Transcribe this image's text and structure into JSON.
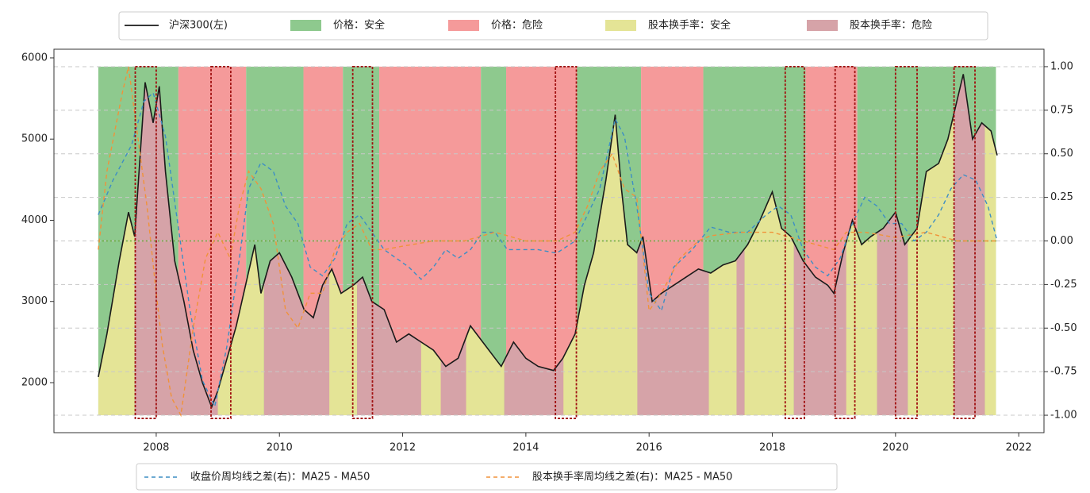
{
  "chart_data": {
    "type": "line",
    "series": [
      {
        "name": "沪深300(左)",
        "color": "#1a1a1a",
        "style": "solid",
        "x": [
          2007.06,
          2007.2,
          2007.4,
          2007.55,
          2007.65,
          2007.82,
          2007.95,
          2008.05,
          2008.15,
          2008.3,
          2008.45,
          2008.6,
          2008.75,
          2008.9,
          2009.0,
          2009.15,
          2009.3,
          2009.45,
          2009.6,
          2009.7,
          2009.85,
          2010.0,
          2010.2,
          2010.4,
          2010.55,
          2010.7,
          2010.85,
          2011.0,
          2011.2,
          2011.35,
          2011.5,
          2011.7,
          2011.9,
          2012.1,
          2012.3,
          2012.5,
          2012.7,
          2012.9,
          2013.1,
          2013.3,
          2013.5,
          2013.6,
          2013.8,
          2014.0,
          2014.2,
          2014.45,
          2014.6,
          2014.8,
          2014.95,
          2015.1,
          2015.3,
          2015.45,
          2015.55,
          2015.65,
          2015.8,
          2015.9,
          2016.05,
          2016.2,
          2016.4,
          2016.6,
          2016.8,
          2017.0,
          2017.2,
          2017.4,
          2017.6,
          2017.8,
          2018.0,
          2018.15,
          2018.3,
          2018.5,
          2018.7,
          2018.9,
          2019.0,
          2019.15,
          2019.3,
          2019.45,
          2019.6,
          2019.8,
          2020.0,
          2020.15,
          2020.35,
          2020.5,
          2020.7,
          2020.85,
          2021.1,
          2021.25,
          2021.4,
          2021.55,
          2021.65
        ],
        "values": [
          2070,
          2600,
          3500,
          4100,
          3800,
          5700,
          5200,
          5650,
          4600,
          3500,
          3000,
          2400,
          2000,
          1700,
          1900,
          2300,
          2700,
          3200,
          3700,
          3100,
          3500,
          3600,
          3300,
          2900,
          2800,
          3200,
          3400,
          3100,
          3200,
          3300,
          3000,
          2900,
          2500,
          2600,
          2500,
          2400,
          2200,
          2300,
          2700,
          2500,
          2300,
          2200,
          2500,
          2300,
          2200,
          2150,
          2300,
          2600,
          3200,
          3600,
          4500,
          5300,
          4400,
          3700,
          3600,
          3800,
          3000,
          3100,
          3200,
          3300,
          3400,
          3350,
          3450,
          3500,
          3700,
          4000,
          4350,
          3900,
          3800,
          3500,
          3300,
          3200,
          3100,
          3600,
          4000,
          3700,
          3800,
          3900,
          4100,
          3700,
          3900,
          4600,
          4700,
          5000,
          5800,
          5000,
          5200,
          5100,
          4800
        ]
      },
      {
        "name": "收盘价周均线之差(右)：MA25 - MA50",
        "color": "#3d8ec4",
        "style": "dashed",
        "axis": "y2",
        "x": [
          2007.06,
          2007.3,
          2007.6,
          2007.8,
          2007.95,
          2008.15,
          2008.35,
          2008.55,
          2008.75,
          2008.95,
          2009.15,
          2009.35,
          2009.5,
          2009.7,
          2009.9,
          2010.1,
          2010.3,
          2010.5,
          2010.7,
          2010.9,
          2011.1,
          2011.3,
          2011.5,
          2011.7,
          2011.9,
          2012.1,
          2012.3,
          2012.5,
          2012.7,
          2012.9,
          2013.1,
          2013.3,
          2013.5,
          2013.7,
          2013.9,
          2014.2,
          2014.5,
          2014.8,
          2015.0,
          2015.2,
          2015.45,
          2015.6,
          2015.8,
          2016.0,
          2016.2,
          2016.4,
          2016.7,
          2017.0,
          2017.3,
          2017.6,
          2017.9,
          2018.1,
          2018.3,
          2018.5,
          2018.7,
          2018.9,
          2019.1,
          2019.3,
          2019.5,
          2019.7,
          2019.9,
          2020.1,
          2020.3,
          2020.5,
          2020.7,
          2020.9,
          2021.1,
          2021.3,
          2021.5,
          2021.65
        ],
        "values": [
          0.15,
          0.35,
          0.55,
          0.8,
          0.85,
          0.6,
          0.1,
          -0.4,
          -0.8,
          -0.95,
          -0.6,
          -0.1,
          0.3,
          0.45,
          0.4,
          0.2,
          0.1,
          -0.15,
          -0.2,
          -0.1,
          0.1,
          0.15,
          0.05,
          -0.05,
          -0.1,
          -0.15,
          -0.22,
          -0.15,
          -0.05,
          -0.1,
          -0.05,
          0.05,
          0.05,
          -0.05,
          -0.05,
          -0.05,
          -0.07,
          0.0,
          0.15,
          0.3,
          0.7,
          0.6,
          0.2,
          -0.3,
          -0.4,
          -0.15,
          -0.05,
          0.08,
          0.05,
          0.05,
          0.15,
          0.2,
          0.15,
          -0.05,
          -0.15,
          -0.2,
          -0.1,
          0.1,
          0.25,
          0.2,
          0.1,
          0.1,
          0.0,
          0.05,
          0.15,
          0.3,
          0.38,
          0.35,
          0.2,
          0.0
        ]
      },
      {
        "name": "股本换手率周均线之差(右)：MA25 - MA50",
        "color": "#f0923a",
        "style": "dashed",
        "axis": "y2",
        "x": [
          2007.06,
          2007.2,
          2007.45,
          2007.55,
          2007.7,
          2007.85,
          2008.0,
          2008.1,
          2008.25,
          2008.4,
          2008.6,
          2008.8,
          2009.0,
          2009.2,
          2009.35,
          2009.5,
          2009.7,
          2009.9,
          2010.1,
          2010.3,
          2010.5,
          2010.7,
          2010.9,
          2011.1,
          2011.3,
          2011.5,
          2011.7,
          2012.0,
          2012.5,
          2013.0,
          2013.5,
          2014.0,
          2014.5,
          2014.8,
          2015.0,
          2015.2,
          2015.4,
          2015.6,
          2015.8,
          2016.0,
          2016.2,
          2016.5,
          2016.8,
          2017.0,
          2017.5,
          2018.0,
          2018.5,
          2019.0,
          2019.2,
          2019.5,
          2020.0,
          2020.5,
          2021.0,
          2021.65
        ],
        "values": [
          -0.05,
          0.4,
          0.85,
          1.0,
          0.6,
          0.2,
          -0.3,
          -0.6,
          -0.9,
          -1.0,
          -0.5,
          -0.1,
          0.05,
          -0.1,
          0.2,
          0.4,
          0.3,
          0.1,
          -0.4,
          -0.5,
          -0.3,
          -0.3,
          -0.05,
          0.05,
          0.1,
          -0.05,
          -0.05,
          -0.03,
          0.0,
          0.0,
          0.05,
          0.0,
          0.0,
          0.05,
          0.2,
          0.4,
          0.5,
          0.3,
          0.25,
          -0.4,
          -0.3,
          -0.1,
          0.0,
          0.03,
          0.05,
          0.05,
          0.0,
          -0.05,
          0.05,
          0.05,
          0.02,
          0.05,
          0.0,
          0.0
        ]
      }
    ],
    "band_legend": [
      {
        "name": "价格：安全",
        "color": "#8ec98e"
      },
      {
        "name": "价格：危险",
        "color": "#f59a9a"
      },
      {
        "name": "股本换手率：安全",
        "color": "#e4e496"
      },
      {
        "name": "股本换手率：危险",
        "color": "#d6a3a8"
      }
    ],
    "price_regions": [
      {
        "start": 2007.06,
        "end": 2008.36,
        "band": 0
      },
      {
        "start": 2008.36,
        "end": 2009.46,
        "band": 1
      },
      {
        "start": 2009.46,
        "end": 2010.39,
        "band": 0
      },
      {
        "start": 2010.39,
        "end": 2011.03,
        "band": 1
      },
      {
        "start": 2011.03,
        "end": 2011.62,
        "band": 0
      },
      {
        "start": 2011.62,
        "end": 2013.27,
        "band": 1
      },
      {
        "start": 2013.27,
        "end": 2013.68,
        "band": 0
      },
      {
        "start": 2013.68,
        "end": 2014.83,
        "band": 1
      },
      {
        "start": 2014.83,
        "end": 2015.87,
        "band": 0
      },
      {
        "start": 2015.87,
        "end": 2016.88,
        "band": 1
      },
      {
        "start": 2016.88,
        "end": 2018.54,
        "band": 0
      },
      {
        "start": 2018.54,
        "end": 2019.38,
        "band": 1
      },
      {
        "start": 2019.38,
        "end": 2021.63,
        "band": 0
      }
    ],
    "turnover_regions": [
      {
        "start": 2007.06,
        "end": 2007.65,
        "band": 2
      },
      {
        "start": 2007.65,
        "end": 2009.0,
        "band": 3
      },
      {
        "start": 2009.0,
        "end": 2009.75,
        "band": 2
      },
      {
        "start": 2009.75,
        "end": 2010.81,
        "band": 3
      },
      {
        "start": 2010.81,
        "end": 2011.26,
        "band": 2
      },
      {
        "start": 2011.26,
        "end": 2012.3,
        "band": 3
      },
      {
        "start": 2012.3,
        "end": 2012.62,
        "band": 2
      },
      {
        "start": 2012.62,
        "end": 2013.03,
        "band": 3
      },
      {
        "start": 2013.03,
        "end": 2013.65,
        "band": 2
      },
      {
        "start": 2013.65,
        "end": 2014.61,
        "band": 3
      },
      {
        "start": 2014.61,
        "end": 2015.81,
        "band": 2
      },
      {
        "start": 2015.81,
        "end": 2016.97,
        "band": 3
      },
      {
        "start": 2016.97,
        "end": 2017.42,
        "band": 2
      },
      {
        "start": 2017.42,
        "end": 2017.55,
        "band": 3
      },
      {
        "start": 2017.55,
        "end": 2018.35,
        "band": 2
      },
      {
        "start": 2018.35,
        "end": 2019.2,
        "band": 3
      },
      {
        "start": 2019.2,
        "end": 2019.7,
        "band": 2
      },
      {
        "start": 2019.7,
        "end": 2020.2,
        "band": 3
      },
      {
        "start": 2020.2,
        "end": 2020.95,
        "band": 2
      },
      {
        "start": 2020.95,
        "end": 2021.45,
        "band": 3
      },
      {
        "start": 2021.45,
        "end": 2021.63,
        "band": 2
      }
    ],
    "highlight_periods": {
      "color": "#a01010",
      "periods": [
        {
          "start": 2007.66,
          "end": 2008.0
        },
        {
          "start": 2008.89,
          "end": 2009.21
        },
        {
          "start": 2011.19,
          "end": 2011.51
        },
        {
          "start": 2014.48,
          "end": 2014.82
        },
        {
          "start": 2018.21,
          "end": 2018.52
        },
        {
          "start": 2019.02,
          "end": 2019.34
        },
        {
          "start": 2020.0,
          "end": 2020.35
        },
        {
          "start": 2020.95,
          "end": 2021.29
        }
      ]
    },
    "reference_line": {
      "axis": "y2",
      "value": 0,
      "color": "#6aa83a"
    },
    "xlim": [
      2006.34,
      2022.41
    ],
    "xticks": [
      2008,
      2010,
      2012,
      2014,
      2016,
      2018,
      2020,
      2022
    ],
    "ylim": [
      1384,
      6107
    ],
    "yticks": [
      2000,
      3000,
      4000,
      5000,
      6000
    ],
    "y2lim": [
      -1.1,
      1.1
    ],
    "y2ticks": [
      {
        "value": 1,
        "label": "1.00"
      },
      {
        "value": 0.75,
        "label": "0.75"
      },
      {
        "value": 0.5,
        "label": "0.50"
      },
      {
        "value": 0.25,
        "label": "0.25"
      },
      {
        "value": 0,
        "label": "0.00"
      },
      {
        "value": -0.25,
        "label": "-0.25"
      },
      {
        "value": -0.5,
        "label": "-0.50"
      },
      {
        "value": -0.75,
        "label": "-0.75"
      },
      {
        "value": -1,
        "label": "-1.00"
      }
    ],
    "grid": true
  }
}
